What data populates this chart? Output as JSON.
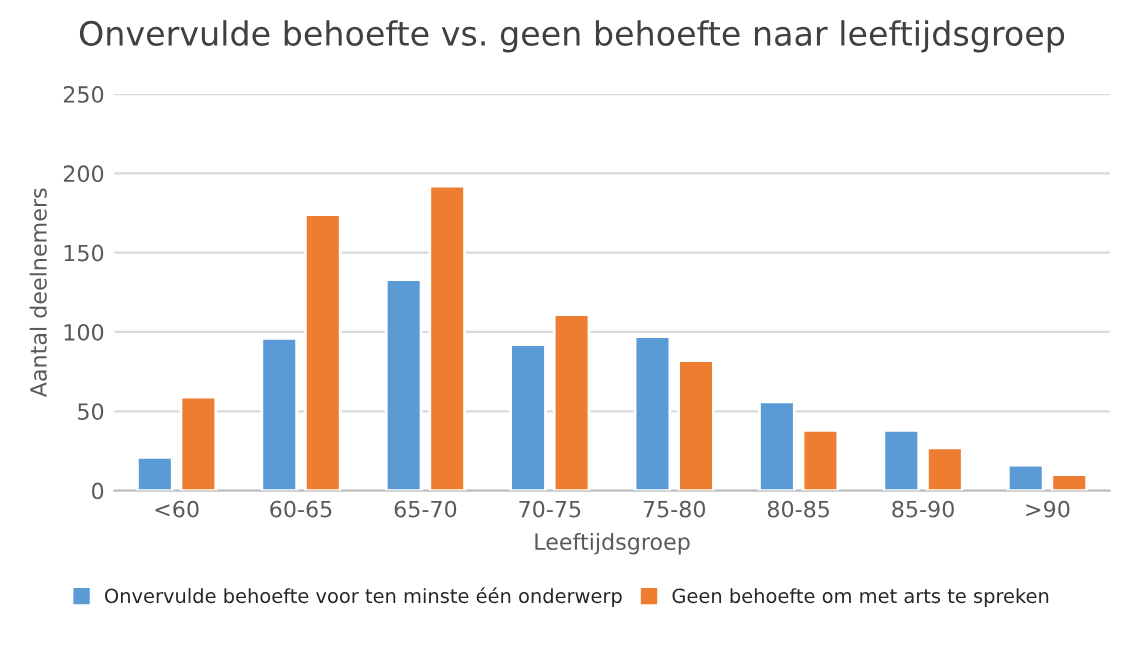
{
  "chart_data": {
    "type": "bar",
    "title": "Onvervulde behoefte vs. geen behoefte naar leeftijdsgroep",
    "xlabel": "Leeftijdsgroep",
    "ylabel": "Aantal deelnemers",
    "categories": [
      "<60",
      "60-65",
      "65-70",
      "70-75",
      "75-80",
      "80-85",
      "85-90",
      ">90"
    ],
    "series": [
      {
        "name": "Onvervulde behoefte voor ten minste één onderwerp",
        "color": "#5b9bd5",
        "values": [
          21,
          96,
          133,
          92,
          97,
          56,
          38,
          16
        ]
      },
      {
        "name": "Geen behoefte om met arts te spreken",
        "color": "#ed7d31",
        "values": [
          59,
          174,
          192,
          111,
          82,
          38,
          27,
          10
        ]
      }
    ],
    "ylim": [
      0,
      250
    ],
    "yticks": [
      0,
      50,
      100,
      150,
      200,
      250
    ],
    "grid": "y",
    "legend": "bottom"
  }
}
